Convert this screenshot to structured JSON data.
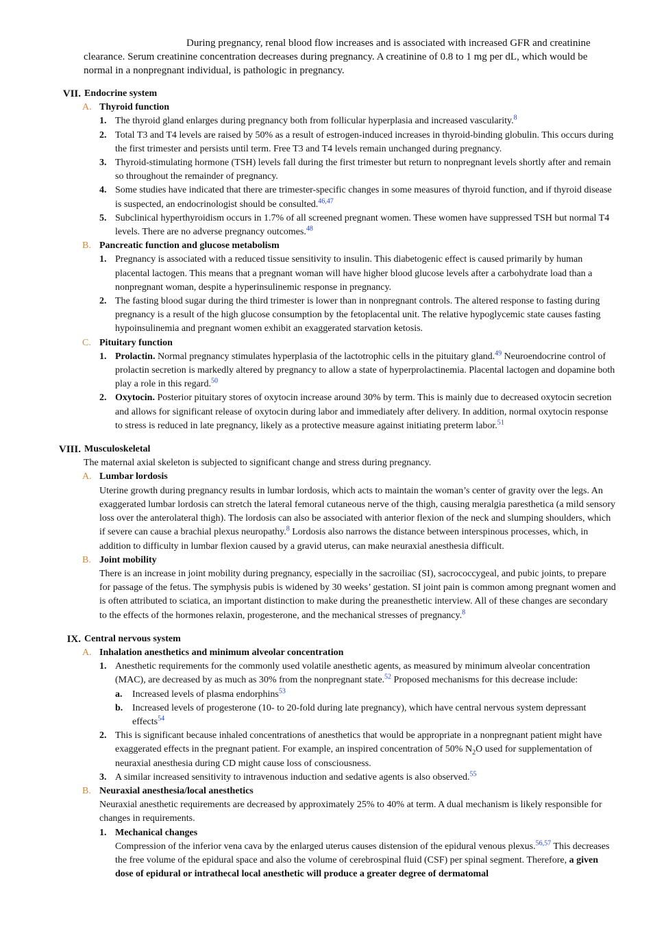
{
  "intro": [
    "During pregnancy, renal blood flow increases and is associated with increased GFR and creatinine clearance. Serum creatinine concentration decreases during pregnancy. A creatinine of 0.8 to 1 mg per dL, which would be normal in a nonpregnant individual, is pathologic in pregnancy."
  ],
  "sections": [
    {
      "numeral": "VII.",
      "title": "Endocrine system",
      "subsections": [
        {
          "letter": "A.",
          "title": "Thyroid function",
          "items": [
            {
              "num": "1.",
              "runs": [
                "The thyroid gland enlarges during pregnancy both from follicular hyperplasia and increased vascularity.",
                {
                  "sup": "8"
                }
              ]
            },
            {
              "num": "2.",
              "runs": [
                "Total T3 and T4 levels are raised by 50% as a result of estrogen-induced increases in thyroid-binding globulin. This occurs during the first trimester and persists until term. Free T3 and T4 levels remain unchanged during pregnancy."
              ]
            },
            {
              "num": "3.",
              "runs": [
                "Thyroid-stimulating hormone (TSH) levels fall during the first trimester but return to nonpregnant levels shortly after and remain so throughout the remainder of pregnancy."
              ]
            },
            {
              "num": "4.",
              "runs": [
                "Some studies have indicated that there are trimester-specific changes in some measures of thyroid function, and if thyroid disease is suspected, an endocrinologist should be consulted.",
                {
                  "sup": "46,47"
                }
              ]
            },
            {
              "num": "5.",
              "runs": [
                "Subclinical hyperthyroidism occurs in 1.7% of all screened pregnant women. These women have suppressed TSH but normal T4 levels. There are no adverse pregnancy outcomes.",
                {
                  "sup": "48"
                }
              ]
            }
          ]
        },
        {
          "letter": "B.",
          "title": "Pancreatic function and glucose metabolism",
          "items": [
            {
              "num": "1.",
              "runs": [
                "Pregnancy is associated with a reduced tissue sensitivity to insulin. This diabetogenic effect is caused primarily by human placental lactogen. This means that a pregnant woman will have higher blood glucose levels after a carbohydrate load than a nonpregnant woman, despite a hyperinsulinemic response in pregnancy."
              ]
            },
            {
              "num": "2.",
              "runs": [
                "The fasting blood sugar during the third trimester is lower than in nonpregnant controls. The altered response to fasting during pregnancy is a result of the high glucose consumption by the fetoplacental unit. The relative hypoglycemic state causes fasting hypoinsulinemia and pregnant women exhibit an exaggerated starvation ketosis."
              ]
            }
          ]
        },
        {
          "letter": "C.",
          "title": "Pituitary function",
          "items": [
            {
              "num": "1.",
              "runs": [
                {
                  "b": "Prolactin."
                },
                " Normal pregnancy stimulates hyperplasia of the lactotrophic cells in the pituitary gland.",
                {
                  "sup": "49"
                },
                " Neuroendocrine control of prolactin secretion is markedly altered by pregnancy to allow a state of hyperprolactinemia. Placental lactogen and dopamine both play a role in this regard.",
                {
                  "sup": "50"
                }
              ]
            },
            {
              "num": "2.",
              "runs": [
                {
                  "b": "Oxytocin."
                },
                " Posterior pituitary stores of oxytocin increase around 30% by term. This is mainly due to decreased oxytocin secretion and allows for significant release of oxytocin during labor and immediately after delivery. In addition, normal oxytocin response to stress is reduced in late pregnancy, likely as a protective measure against initiating preterm labor.",
                {
                  "sup": "51"
                }
              ]
            }
          ]
        }
      ]
    },
    {
      "numeral": "VIII.",
      "title": "Musculoskeletal",
      "body": [
        "The maternal axial skeleton is subjected to significant change and stress during pregnancy."
      ],
      "subsections": [
        {
          "letter": "A.",
          "title": "Lumbar lordosis",
          "body": [
            "Uterine growth during pregnancy results in lumbar lordosis, which acts to maintain the woman’s center of gravity over the legs. An exaggerated lumbar lordosis can stretch the lateral femoral cutaneous nerve of the thigh, causing meralgia paresthetica (a mild sensory loss over the anterolateral thigh). The lordosis can also be associated with anterior flexion of the neck and slumping shoulders, which if severe can cause a brachial plexus neuropathy.",
            {
              "sup": "8"
            },
            " Lordosis also narrows the distance between interspinous processes, which, in addition to difficulty in lumbar flexion caused by a gravid uterus, can make neuraxial anesthesia difficult."
          ]
        },
        {
          "letter": "B.",
          "title": "Joint mobility",
          "body": [
            "There is an increase in joint mobility during pregnancy, especially in the sacroiliac (SI), sacrococcygeal, and pubic joints, to prepare for passage of the fetus. The symphysis pubis is widened by 30 weeks’ gestation. SI joint pain is common among pregnant women and is often attributed to sciatica, an important distinction to make during the preanesthetic interview. All of these changes are secondary to the effects of the hormones relaxin, progesterone, and the mechanical stresses of pregnancy.",
            {
              "sup": "8"
            }
          ]
        }
      ]
    },
    {
      "numeral": "IX.",
      "title": "Central nervous system",
      "subsections": [
        {
          "letter": "A.",
          "title": "Inhalation anesthetics and minimum alveolar concentration",
          "items": [
            {
              "num": "1.",
              "runs": [
                "Anesthetic requirements for the commonly used volatile anesthetic agents, as measured by minimum alveolar concentration (MAC), are decreased by as much as 30% from the nonpregnant state.",
                {
                  "sup": "52"
                },
                " Proposed mechanisms for this decrease include:"
              ],
              "subitems": [
                {
                  "letter": "a.",
                  "runs": [
                    "Increased levels of plasma endorphins",
                    {
                      "sup": "53"
                    }
                  ]
                },
                {
                  "letter": "b.",
                  "runs": [
                    "Increased levels of progesterone (10- to 20-fold during late pregnancy), which have central nervous system depressant effects",
                    {
                      "sup": "54"
                    }
                  ]
                }
              ]
            },
            {
              "num": "2.",
              "runs": [
                "This is significant because inhaled concentrations of anesthetics that would be appropriate in a nonpregnant patient might have exaggerated effects in the pregnant patient. For example, an inspired concentration of 50% N",
                {
                  "sub": "2"
                },
                "O used for supplementation of neuraxial anesthesia during CD might cause loss of consciousness."
              ]
            },
            {
              "num": "3.",
              "runs": [
                "A similar increased sensitivity to intravenous induction and sedative agents is also observed.",
                {
                  "sup": "55"
                }
              ]
            }
          ]
        },
        {
          "letter": "B.",
          "title": "Neuraxial anesthesia/local anesthetics",
          "body": [
            "Neuraxial anesthetic requirements are decreased by approximately 25% to 40% at term. A dual mechanism is likely responsible for changes in requirements."
          ],
          "items": [
            {
              "num": "1.",
              "title": "Mechanical changes",
              "runs": [
                "Compression of the inferior vena cava by the enlarged uterus causes distension of the epidural venous plexus.",
                {
                  "sup": "56,57"
                },
                " This decreases the free volume of the epidural space and also the volume of cerebrospinal fluid (CSF) per spinal segment. Therefore, ",
                {
                  "b": "a given dose of epidural or intrathecal local anesthetic will produce a greater degree of dermatomal"
                }
              ]
            }
          ]
        }
      ]
    }
  ]
}
